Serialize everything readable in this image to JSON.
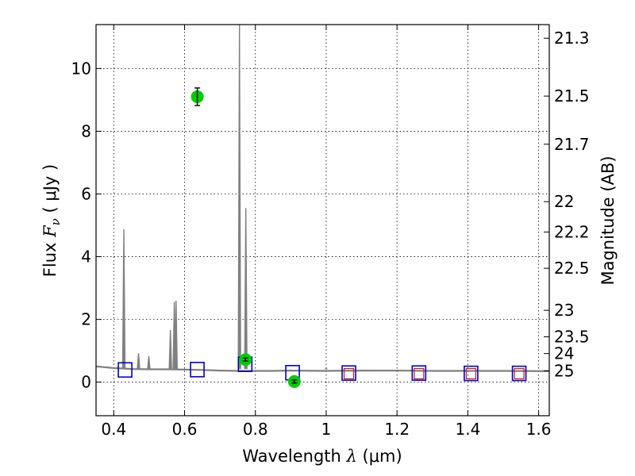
{
  "chart_data": {
    "type": "scatter",
    "title": "",
    "xlabel": {
      "prefix": "Wavelength  ",
      "symbol": "λ",
      "unit": " (μm)"
    },
    "ylabel": {
      "prefix": "Flux  ",
      "symbol": "F",
      "subscript": "ν",
      "unit": "  ( μJy )"
    },
    "ylabel_right": "Magnitude (AB)",
    "xlim": [
      0.35,
      1.63
    ],
    "ylim": [
      -1.07,
      11.4
    ],
    "grid": true,
    "x_ticks": [
      0.4,
      0.6,
      0.8,
      1.0,
      1.2,
      1.4,
      1.6
    ],
    "x_tick_labels": [
      "0.4",
      "0.6",
      "0.8",
      "1",
      "1.2",
      "1.4",
      "1.6"
    ],
    "y_ticks": [
      0,
      2,
      4,
      6,
      8,
      10
    ],
    "y_tick_labels": [
      "0",
      "2",
      "4",
      "6",
      "8",
      "10"
    ],
    "mag_ticks": [
      {
        "label": "21.3",
        "mag": 21.3
      },
      {
        "label": "21.5",
        "mag": 21.5
      },
      {
        "label": "21.7",
        "mag": 21.7
      },
      {
        "label": "22",
        "mag": 22.0
      },
      {
        "label": "22.2",
        "mag": 22.2
      },
      {
        "label": "22.5",
        "mag": 22.5
      },
      {
        "label": "23",
        "mag": 23.0
      },
      {
        "label": "23.5",
        "mag": 23.5
      },
      {
        "label": "24",
        "mag": 24.0
      },
      {
        "label": "25",
        "mag": 25.0
      }
    ],
    "series": [
      {
        "kind": "model_spectrum",
        "color": "#808080",
        "continuum": [
          [
            0.35,
            0.5
          ],
          [
            0.4,
            0.45
          ],
          [
            0.45,
            0.42
          ],
          [
            0.5,
            0.41
          ],
          [
            0.55,
            0.41
          ],
          [
            0.6,
            0.4
          ],
          [
            0.65,
            0.39
          ],
          [
            0.7,
            0.37
          ],
          [
            0.75,
            0.36
          ],
          [
            0.8,
            0.36
          ],
          [
            0.85,
            0.36
          ],
          [
            0.9,
            0.37
          ],
          [
            1.0,
            0.36
          ],
          [
            1.1,
            0.37
          ],
          [
            1.2,
            0.37
          ],
          [
            1.3,
            0.36
          ],
          [
            1.4,
            0.36
          ],
          [
            1.5,
            0.36
          ],
          [
            1.63,
            0.35
          ]
        ],
        "emission_lines": [
          {
            "x": 0.4285,
            "peak": 4.88
          },
          {
            "x": 0.47,
            "peak": 0.92
          },
          {
            "x": 0.499,
            "peak": 0.83
          },
          {
            "x": 0.56,
            "peak": 1.66
          },
          {
            "x": 0.571,
            "peak": 2.56
          },
          {
            "x": 0.576,
            "peak": 2.6
          },
          {
            "x": 0.755,
            "peak": 11.4
          },
          {
            "x": 0.773,
            "peak": 5.55
          },
          {
            "x": 1.0,
            "peak": 0.43
          }
        ]
      },
      {
        "kind": "model_photometry_blue",
        "color": "#0000cc",
        "points": [
          [
            0.432,
            0.39
          ],
          [
            0.636,
            0.4
          ],
          [
            0.771,
            0.57
          ],
          [
            0.905,
            0.3
          ],
          [
            1.064,
            0.29
          ],
          [
            1.262,
            0.29
          ],
          [
            1.409,
            0.28
          ],
          [
            1.545,
            0.28
          ]
        ]
      },
      {
        "kind": "model_photometry_red",
        "color": "#cc2222",
        "points": [
          [
            1.064,
            0.27
          ],
          [
            1.262,
            0.27
          ],
          [
            1.409,
            0.27
          ],
          [
            1.545,
            0.27
          ]
        ]
      },
      {
        "kind": "observed",
        "color": "#00cc00",
        "points": [
          {
            "x": 0.636,
            "y": 9.1,
            "err": 0.28
          },
          {
            "x": 0.772,
            "y": 0.72,
            "err": 0.05
          },
          {
            "x": 0.91,
            "y": 0.02,
            "err": 0.05
          }
        ]
      }
    ]
  }
}
